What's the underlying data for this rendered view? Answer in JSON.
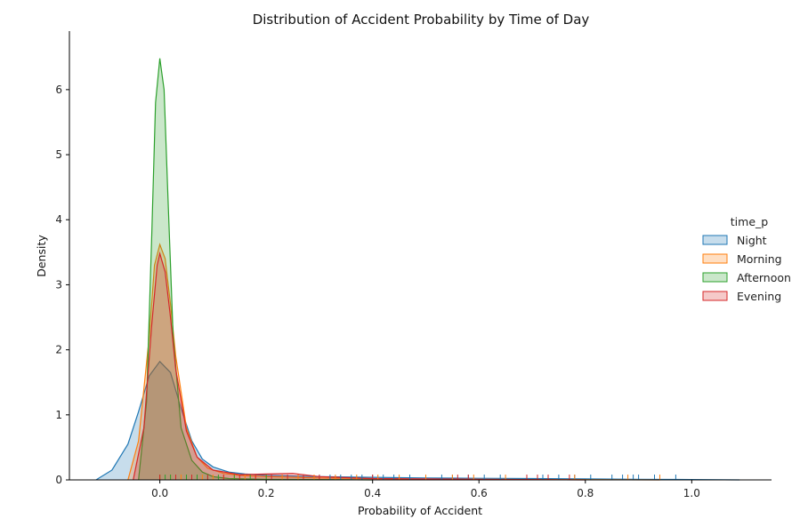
{
  "chart_data": {
    "type": "area",
    "title": "Distribution of Accident Probability by Time of Day",
    "xlabel": "Probability of Accident",
    "ylabel": "Density",
    "xlim": [
      -0.17,
      1.15
    ],
    "ylim": [
      0,
      6.9
    ],
    "xticks": [
      0.0,
      0.2,
      0.4,
      0.6,
      0.8,
      1.0
    ],
    "xtick_labels": [
      "0.0",
      "0.2",
      "0.4",
      "0.6",
      "0.8",
      "1.0"
    ],
    "yticks": [
      0,
      1,
      2,
      3,
      4,
      5,
      6
    ],
    "ytick_labels": [
      "0",
      "1",
      "2",
      "3",
      "4",
      "5",
      "6"
    ],
    "grid": false,
    "legend": {
      "title": "time_p",
      "placement": "right"
    },
    "series": [
      {
        "name": "Night",
        "color": "#1f77b4",
        "x": [
          -0.12,
          -0.09,
          -0.06,
          -0.04,
          -0.02,
          0.0,
          0.02,
          0.04,
          0.06,
          0.08,
          0.1,
          0.13,
          0.16,
          0.2,
          0.3,
          0.4,
          0.5,
          0.6,
          0.7,
          0.8,
          0.9,
          1.0,
          1.09
        ],
        "y": [
          0.0,
          0.15,
          0.55,
          1.05,
          1.6,
          1.82,
          1.65,
          1.1,
          0.6,
          0.32,
          0.2,
          0.12,
          0.09,
          0.07,
          0.05,
          0.04,
          0.03,
          0.025,
          0.02,
          0.015,
          0.01,
          0.005,
          0.0
        ],
        "rug": [
          0.3,
          0.32,
          0.34,
          0.36,
          0.38,
          0.4,
          0.42,
          0.44,
          0.47,
          0.5,
          0.53,
          0.55,
          0.58,
          0.61,
          0.64,
          0.69,
          0.72,
          0.75,
          0.78,
          0.81,
          0.85,
          0.87,
          0.89,
          0.9,
          0.93,
          0.97
        ]
      },
      {
        "name": "Morning",
        "color": "#ff7f0e",
        "x": [
          -0.06,
          -0.04,
          -0.02,
          -0.01,
          0.0,
          0.01,
          0.02,
          0.03,
          0.05,
          0.07,
          0.09,
          0.12,
          0.15,
          0.2,
          0.3,
          0.5,
          0.7,
          0.94
        ],
        "y": [
          0.0,
          0.6,
          2.2,
          3.3,
          3.62,
          3.4,
          2.7,
          1.9,
          0.8,
          0.35,
          0.18,
          0.1,
          0.07,
          0.05,
          0.03,
          0.01,
          0.005,
          0.0
        ],
        "rug": [
          0.0,
          0.02,
          0.04,
          0.06,
          0.08,
          0.1,
          0.12,
          0.14,
          0.16,
          0.18,
          0.2,
          0.23,
          0.26,
          0.29,
          0.33,
          0.37,
          0.41,
          0.45,
          0.5,
          0.55,
          0.59,
          0.65,
          0.78,
          0.88,
          0.94
        ]
      },
      {
        "name": "Afternoon",
        "color": "#2ca02c",
        "x": [
          -0.04,
          -0.025,
          -0.015,
          -0.008,
          0.0,
          0.008,
          0.015,
          0.025,
          0.04,
          0.06,
          0.08,
          0.1,
          0.13,
          0.2,
          0.3,
          0.4
        ],
        "y": [
          0.0,
          1.2,
          3.8,
          5.8,
          6.48,
          6.0,
          4.4,
          2.2,
          0.8,
          0.3,
          0.12,
          0.05,
          0.02,
          0.01,
          0.005,
          0.0
        ],
        "rug": [
          0.0,
          0.01,
          0.02,
          0.03,
          0.05,
          0.07,
          0.09,
          0.11,
          0.14,
          0.17,
          0.2
        ]
      },
      {
        "name": "Evening",
        "color": "#d62728",
        "x": [
          -0.05,
          -0.03,
          -0.015,
          -0.005,
          0.0,
          0.01,
          0.02,
          0.03,
          0.05,
          0.07,
          0.1,
          0.15,
          0.2,
          0.25,
          0.3,
          0.4,
          0.6,
          0.8
        ],
        "y": [
          0.0,
          0.8,
          2.4,
          3.3,
          3.48,
          3.2,
          2.5,
          1.7,
          0.75,
          0.35,
          0.15,
          0.08,
          0.09,
          0.1,
          0.05,
          0.02,
          0.01,
          0.0
        ],
        "rug": [
          0.0,
          0.03,
          0.06,
          0.09,
          0.12,
          0.15,
          0.18,
          0.21,
          0.24,
          0.27,
          0.3,
          0.4,
          0.56,
          0.58,
          0.69,
          0.71,
          0.73,
          0.77
        ]
      }
    ]
  }
}
